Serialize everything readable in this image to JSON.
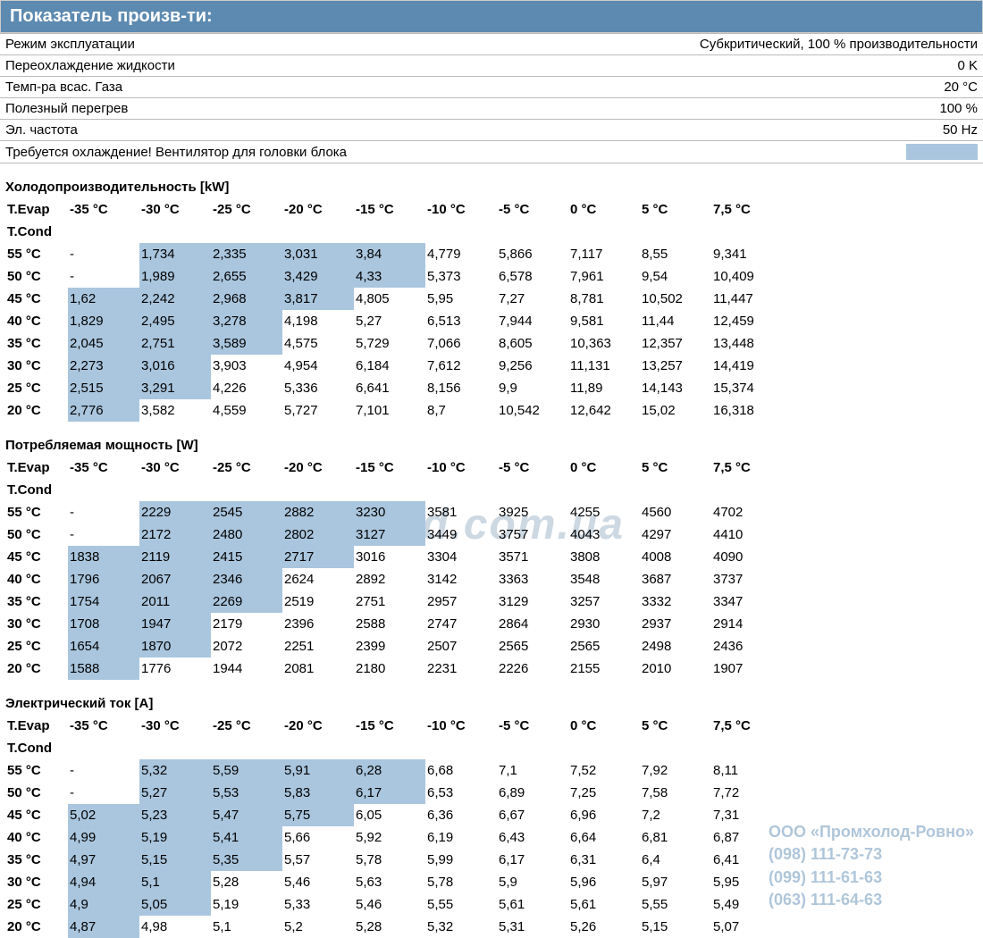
{
  "header": {
    "title": "Показатель произв-ти:"
  },
  "params": [
    {
      "label": "Режим эксплуатации",
      "value": "Субкритический, 100 % производительности"
    },
    {
      "label": "Переохлаждение жидкости",
      "value": "0 K"
    },
    {
      "label": "Темп-ра всас. Газа",
      "value": "20 °C"
    },
    {
      "label": "Полезный перегрев",
      "value": "100 %"
    },
    {
      "label": "Эл. частота",
      "value": "50 Hz"
    }
  ],
  "cooling_note": "Требуется охлаждение! Вентилятор для головки блока",
  "col_headers": [
    "-35 °C",
    "-30 °C",
    "-25 °C",
    "-20 °C",
    "-15 °C",
    "-10 °C",
    "-5 °C",
    "0 °C",
    "5 °C",
    "7,5 °C"
  ],
  "t_evap_label": "T.Evap",
  "t_cond_label": "T.Cond",
  "row_labels": [
    "55 °C",
    "50 °C",
    "45 °C",
    "40 °C",
    "35 °C",
    "30 °C",
    "25 °C",
    "20 °C"
  ],
  "sections": [
    {
      "title": "Холодопроизводительность [kW]",
      "rows": [
        [
          "-",
          "1,734",
          "2,335",
          "3,031",
          "3,84",
          "4,779",
          "5,866",
          "7,117",
          "8,55",
          "9,341"
        ],
        [
          "-",
          "1,989",
          "2,655",
          "3,429",
          "4,33",
          "5,373",
          "6,578",
          "7,961",
          "9,54",
          "10,409"
        ],
        [
          "1,62",
          "2,242",
          "2,968",
          "3,817",
          "4,805",
          "5,95",
          "7,27",
          "8,781",
          "10,502",
          "11,447"
        ],
        [
          "1,829",
          "2,495",
          "3,278",
          "4,198",
          "5,27",
          "6,513",
          "7,944",
          "9,581",
          "11,44",
          "12,459"
        ],
        [
          "2,045",
          "2,751",
          "3,589",
          "4,575",
          "5,729",
          "7,066",
          "8,605",
          "10,363",
          "12,357",
          "13,448"
        ],
        [
          "2,273",
          "3,016",
          "3,903",
          "4,954",
          "6,184",
          "7,612",
          "9,256",
          "11,131",
          "13,257",
          "14,419"
        ],
        [
          "2,515",
          "3,291",
          "4,226",
          "5,336",
          "6,641",
          "8,156",
          "9,9",
          "11,89",
          "14,143",
          "15,374"
        ],
        [
          "2,776",
          "3,582",
          "4,559",
          "5,727",
          "7,101",
          "8,7",
          "10,542",
          "12,642",
          "15,02",
          "16,318"
        ]
      ],
      "hl": [
        [
          0,
          0,
          1,
          1,
          1,
          1,
          0,
          0,
          0,
          0,
          0
        ],
        [
          0,
          0,
          1,
          1,
          1,
          1,
          0,
          0,
          0,
          0,
          0
        ],
        [
          0,
          1,
          1,
          1,
          1,
          0,
          0,
          0,
          0,
          0,
          0
        ],
        [
          0,
          1,
          1,
          1,
          0,
          0,
          0,
          0,
          0,
          0,
          0
        ],
        [
          0,
          1,
          1,
          1,
          0,
          0,
          0,
          0,
          0,
          0,
          0
        ],
        [
          0,
          1,
          1,
          0,
          0,
          0,
          0,
          0,
          0,
          0,
          0
        ],
        [
          0,
          1,
          1,
          0,
          0,
          0,
          0,
          0,
          0,
          0,
          0
        ],
        [
          0,
          1,
          0,
          0,
          0,
          0,
          0,
          0,
          0,
          0,
          0
        ]
      ]
    },
    {
      "title": "Потребляемая мощность [W]",
      "rows": [
        [
          "-",
          "2229",
          "2545",
          "2882",
          "3230",
          "3581",
          "3925",
          "4255",
          "4560",
          "4702"
        ],
        [
          "-",
          "2172",
          "2480",
          "2802",
          "3127",
          "3449",
          "3757",
          "4043",
          "4297",
          "4410"
        ],
        [
          "1838",
          "2119",
          "2415",
          "2717",
          "3016",
          "3304",
          "3571",
          "3808",
          "4008",
          "4090"
        ],
        [
          "1796",
          "2067",
          "2346",
          "2624",
          "2892",
          "3142",
          "3363",
          "3548",
          "3687",
          "3737"
        ],
        [
          "1754",
          "2011",
          "2269",
          "2519",
          "2751",
          "2957",
          "3129",
          "3257",
          "3332",
          "3347"
        ],
        [
          "1708",
          "1947",
          "2179",
          "2396",
          "2588",
          "2747",
          "2864",
          "2930",
          "2937",
          "2914"
        ],
        [
          "1654",
          "1870",
          "2072",
          "2251",
          "2399",
          "2507",
          "2565",
          "2565",
          "2498",
          "2436"
        ],
        [
          "1588",
          "1776",
          "1944",
          "2081",
          "2180",
          "2231",
          "2226",
          "2155",
          "2010",
          "1907"
        ]
      ],
      "hl": [
        [
          0,
          0,
          1,
          1,
          1,
          1,
          0,
          0,
          0,
          0,
          0
        ],
        [
          0,
          0,
          1,
          1,
          1,
          1,
          0,
          0,
          0,
          0,
          0
        ],
        [
          0,
          1,
          1,
          1,
          1,
          0,
          0,
          0,
          0,
          0,
          0
        ],
        [
          0,
          1,
          1,
          1,
          0,
          0,
          0,
          0,
          0,
          0,
          0
        ],
        [
          0,
          1,
          1,
          1,
          0,
          0,
          0,
          0,
          0,
          0,
          0
        ],
        [
          0,
          1,
          1,
          0,
          0,
          0,
          0,
          0,
          0,
          0,
          0
        ],
        [
          0,
          1,
          1,
          0,
          0,
          0,
          0,
          0,
          0,
          0,
          0
        ],
        [
          0,
          1,
          0,
          0,
          0,
          0,
          0,
          0,
          0,
          0,
          0
        ]
      ]
    },
    {
      "title": "Электрический ток [A]",
      "rows": [
        [
          "-",
          "5,32",
          "5,59",
          "5,91",
          "6,28",
          "6,68",
          "7,1",
          "7,52",
          "7,92",
          "8,11"
        ],
        [
          "-",
          "5,27",
          "5,53",
          "5,83",
          "6,17",
          "6,53",
          "6,89",
          "7,25",
          "7,58",
          "7,72"
        ],
        [
          "5,02",
          "5,23",
          "5,47",
          "5,75",
          "6,05",
          "6,36",
          "6,67",
          "6,96",
          "7,2",
          "7,31"
        ],
        [
          "4,99",
          "5,19",
          "5,41",
          "5,66",
          "5,92",
          "6,19",
          "6,43",
          "6,64",
          "6,81",
          "6,87"
        ],
        [
          "4,97",
          "5,15",
          "5,35",
          "5,57",
          "5,78",
          "5,99",
          "6,17",
          "6,31",
          "6,4",
          "6,41"
        ],
        [
          "4,94",
          "5,1",
          "5,28",
          "5,46",
          "5,63",
          "5,78",
          "5,9",
          "5,96",
          "5,97",
          "5,95"
        ],
        [
          "4,9",
          "5,05",
          "5,19",
          "5,33",
          "5,46",
          "5,55",
          "5,61",
          "5,61",
          "5,55",
          "5,49"
        ],
        [
          "4,87",
          "4,98",
          "5,1",
          "5,2",
          "5,28",
          "5,32",
          "5,31",
          "5,26",
          "5,15",
          "5,07"
        ]
      ],
      "hl": [
        [
          0,
          0,
          1,
          1,
          1,
          1,
          0,
          0,
          0,
          0,
          0
        ],
        [
          0,
          0,
          1,
          1,
          1,
          1,
          0,
          0,
          0,
          0,
          0
        ],
        [
          0,
          1,
          1,
          1,
          1,
          0,
          0,
          0,
          0,
          0,
          0
        ],
        [
          0,
          1,
          1,
          1,
          0,
          0,
          0,
          0,
          0,
          0,
          0
        ],
        [
          0,
          1,
          1,
          1,
          0,
          0,
          0,
          0,
          0,
          0,
          0
        ],
        [
          0,
          1,
          1,
          0,
          0,
          0,
          0,
          0,
          0,
          0,
          0
        ],
        [
          0,
          1,
          1,
          0,
          0,
          0,
          0,
          0,
          0,
          0,
          0
        ],
        [
          0,
          1,
          0,
          0,
          0,
          0,
          0,
          0,
          0,
          0,
          0
        ]
      ]
    }
  ],
  "watermark": "www.pholod.com.ua",
  "contact": {
    "company": "ООО «Промхолод-Ровно»",
    "phones": [
      "(098) 111-73-73",
      "(099) 111-61-63",
      "(063) 111-64-63"
    ]
  }
}
